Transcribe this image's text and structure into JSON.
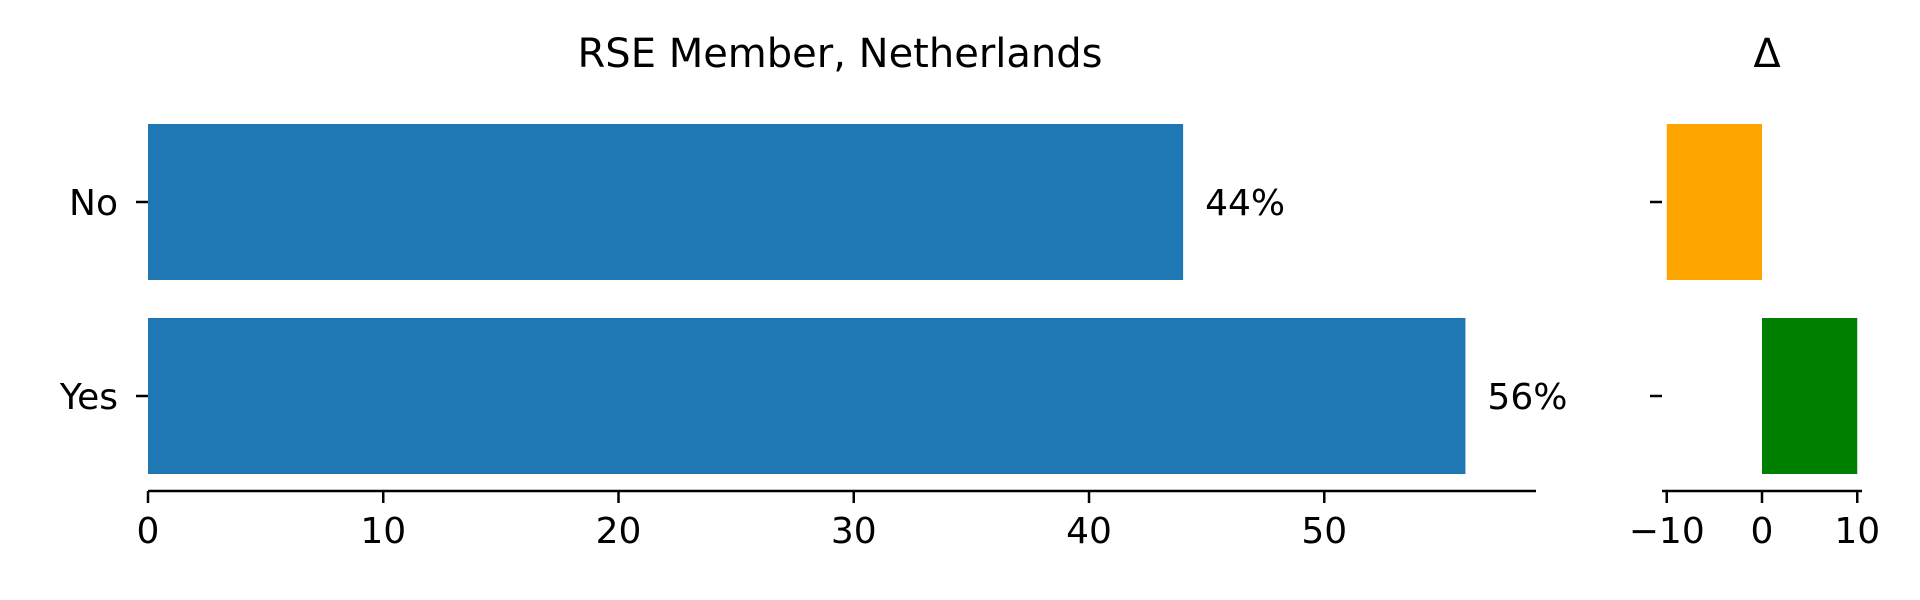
{
  "chart_data": [
    {
      "type": "bar",
      "orientation": "horizontal",
      "title": "RSE Member, Netherlands",
      "categories": [
        "No",
        "Yes"
      ],
      "values": [
        44,
        56
      ],
      "data_labels": [
        "44%",
        "56%"
      ],
      "xlabel": "",
      "ylabel": "",
      "xlim": [
        0,
        59
      ],
      "xticks": [
        0,
        10,
        20,
        30,
        40,
        50
      ],
      "grid": false,
      "color": "#1f77b4"
    },
    {
      "type": "bar",
      "orientation": "horizontal",
      "title": "Δ",
      "categories": [
        "No",
        "Yes"
      ],
      "values": [
        -10,
        10
      ],
      "xlabel": "",
      "ylabel": "",
      "xlim": [
        -10.5,
        10.5
      ],
      "xticks": [
        -10,
        0,
        10
      ],
      "xtick_labels": [
        "−10",
        "0",
        "10"
      ],
      "grid": false,
      "colors": [
        "#ffa500",
        "#008000"
      ]
    }
  ]
}
